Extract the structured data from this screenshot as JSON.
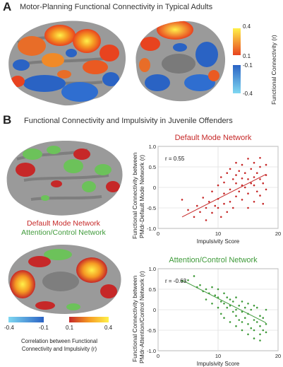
{
  "panel_a": {
    "letter": "A",
    "title": "Motor-Planning Functional Connectivity in Typical Adults",
    "colorbar": {
      "ticks_positive": [
        "0.4",
        "0.1"
      ],
      "ticks_negative": [
        "-0.1",
        "-0.4"
      ],
      "axis_label": "Functional Connectivity (r)",
      "colors": {
        "pos_high": "#fff14a",
        "pos_low": "#e8431f",
        "neg_low": "#2a63c4",
        "neg_high": "#7fd8f2"
      }
    }
  },
  "panel_b": {
    "letter": "B",
    "title": "Functional Connectivity and Impulsivity in Juvenile Offenders",
    "network_labels": {
      "dmn": "Default Mode Network",
      "acn": "Attention/Control Network"
    },
    "colorbar": {
      "ticks": [
        "-0.4",
        "-0.1",
        "0.1",
        "0.4"
      ],
      "label_line1": "Correlation between Functional",
      "label_line2": "Connectivity and Impulsivity (r)"
    }
  },
  "chart_data": [
    {
      "type": "scatter",
      "title": "Default Mode Network",
      "annotation": "r = 0.55",
      "xlabel": "Impulsivity Score",
      "ylabel_line1": "Functional Connectivity between",
      "ylabel_line2": "PMdr-Default Mode Network (r)",
      "xlim": [
        0,
        20
      ],
      "ylim": [
        -1,
        1
      ],
      "x_ticks": [
        "0",
        "10",
        "20"
      ],
      "y_ticks": [
        "1.0",
        "0.5",
        "0",
        "-0.5",
        "-1.0"
      ],
      "grid": true,
      "color": "#c62828",
      "trend": {
        "x": [
          4,
          18
        ],
        "y": [
          -0.72,
          0.32
        ]
      },
      "points": [
        [
          4,
          -0.3
        ],
        [
          5,
          -0.55
        ],
        [
          6,
          -0.72
        ],
        [
          6.5,
          -0.45
        ],
        [
          7,
          -0.6
        ],
        [
          7.5,
          -0.25
        ],
        [
          8,
          -0.8
        ],
        [
          8,
          -0.5
        ],
        [
          8.5,
          -0.35
        ],
        [
          9,
          -0.62
        ],
        [
          9,
          -0.1
        ],
        [
          9.5,
          -0.45
        ],
        [
          10,
          -0.5
        ],
        [
          10,
          0.05
        ],
        [
          10,
          -0.28
        ],
        [
          10.5,
          -0.72
        ],
        [
          10.5,
          0.25
        ],
        [
          11,
          -0.4
        ],
        [
          11,
          0.12
        ],
        [
          11,
          -0.15
        ],
        [
          11.5,
          0.35
        ],
        [
          11.5,
          -0.6
        ],
        [
          12,
          -0.05
        ],
        [
          12,
          0.45
        ],
        [
          12,
          -0.35
        ],
        [
          12.5,
          0.2
        ],
        [
          12.5,
          -0.5
        ],
        [
          13,
          0.1
        ],
        [
          13,
          0.6
        ],
        [
          13,
          -0.22
        ],
        [
          13,
          0.3
        ],
        [
          13.5,
          -0.1
        ],
        [
          13.5,
          0.4
        ],
        [
          14,
          0.05
        ],
        [
          14,
          0.55
        ],
        [
          14,
          -0.3
        ],
        [
          14,
          0.22
        ],
        [
          14.5,
          0.0
        ],
        [
          14.5,
          0.35
        ],
        [
          15,
          0.7
        ],
        [
          15,
          -0.15
        ],
        [
          15,
          0.2
        ],
        [
          15,
          -0.5
        ],
        [
          15.5,
          0.45
        ],
        [
          15.5,
          0.1
        ],
        [
          16,
          0.25
        ],
        [
          16,
          0.6
        ],
        [
          16,
          -0.35
        ],
        [
          16,
          0.05
        ],
        [
          16.5,
          0.35
        ],
        [
          16.5,
          -0.1
        ],
        [
          17,
          0.5
        ],
        [
          17,
          0.2
        ],
        [
          17,
          -0.2
        ],
        [
          17,
          0.72
        ],
        [
          17.5,
          0.1
        ],
        [
          17.5,
          -0.4
        ],
        [
          18,
          0.3
        ],
        [
          18,
          0.55
        ],
        [
          18,
          -0.05
        ]
      ]
    },
    {
      "type": "scatter",
      "title": "Attention/Control Network",
      "annotation": "r = -0.63",
      "xlabel": "Impulsivity Score",
      "ylabel_line1": "Functional Connectivity between",
      "ylabel_line2": "PMdr-Attention/Control Network (r)",
      "xlim": [
        0,
        20
      ],
      "ylim": [
        -1,
        1
      ],
      "x_ticks": [
        "0",
        "10",
        "20"
      ],
      "y_ticks": [
        "1.0",
        "0.5",
        "0",
        "-0.5",
        "-1.0"
      ],
      "grid": true,
      "color": "#3f9a3a",
      "trend": {
        "x": [
          4,
          18
        ],
        "y": [
          0.72,
          -0.32
        ]
      },
      "points": [
        [
          4,
          0.7
        ],
        [
          5,
          0.72
        ],
        [
          6,
          0.82
        ],
        [
          6.5,
          0.55
        ],
        [
          7,
          0.6
        ],
        [
          7.5,
          0.45
        ],
        [
          8,
          0.5
        ],
        [
          8,
          0.25
        ],
        [
          8.5,
          0.4
        ],
        [
          9,
          0.55
        ],
        [
          9,
          0.15
        ],
        [
          9.5,
          0.35
        ],
        [
          10,
          0.5
        ],
        [
          10,
          0.05
        ],
        [
          10,
          0.3
        ],
        [
          10.5,
          0.2
        ],
        [
          10.5,
          -0.1
        ],
        [
          11,
          0.4
        ],
        [
          11,
          0.15
        ],
        [
          11,
          -0.2
        ],
        [
          11.5,
          0.05
        ],
        [
          11.5,
          0.3
        ],
        [
          12,
          0.1
        ],
        [
          12,
          -0.3
        ],
        [
          12,
          0.25
        ],
        [
          12.5,
          -0.05
        ],
        [
          12.5,
          0.2
        ],
        [
          13,
          0.0
        ],
        [
          13,
          -0.4
        ],
        [
          13,
          0.3
        ],
        [
          13,
          -0.15
        ],
        [
          13.5,
          0.1
        ],
        [
          13.5,
          -0.25
        ],
        [
          14,
          -0.05
        ],
        [
          14,
          0.2
        ],
        [
          14,
          -0.5
        ],
        [
          14,
          -0.3
        ],
        [
          14.5,
          0.05
        ],
        [
          14.5,
          -0.2
        ],
        [
          15,
          -0.1
        ],
        [
          15,
          -0.6
        ],
        [
          15,
          0.15
        ],
        [
          15,
          -0.35
        ],
        [
          15.5,
          -0.45
        ],
        [
          15.5,
          0.0
        ],
        [
          16,
          -0.25
        ],
        [
          16,
          -0.7
        ],
        [
          16,
          0.1
        ],
        [
          16,
          -0.5
        ],
        [
          16.5,
          -0.3
        ],
        [
          16.5,
          0.05
        ],
        [
          17,
          -0.4
        ],
        [
          17,
          -0.15
        ],
        [
          17,
          -0.6
        ],
        [
          17,
          -0.75
        ],
        [
          17.5,
          -0.2
        ],
        [
          17.5,
          -0.5
        ],
        [
          18,
          -0.35
        ],
        [
          18,
          -0.55
        ],
        [
          18,
          0.0
        ]
      ]
    }
  ]
}
